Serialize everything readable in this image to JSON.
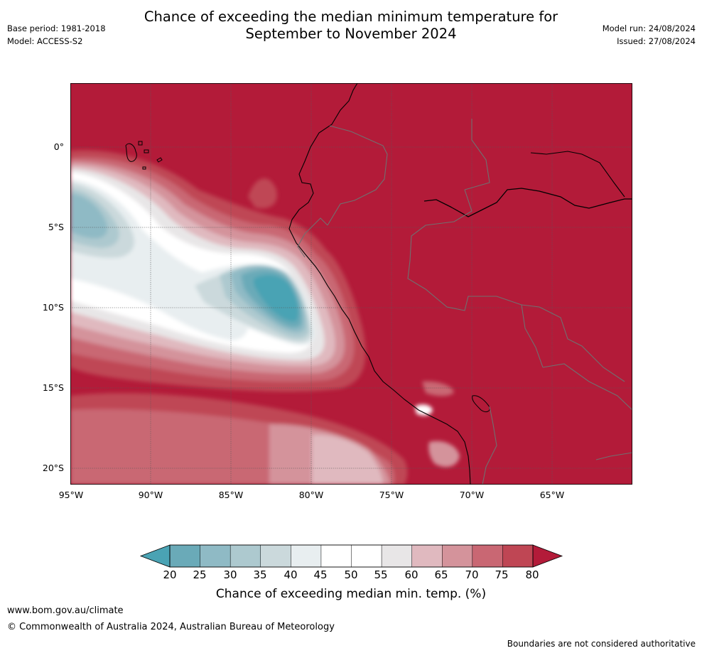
{
  "title_line1": "Chance of exceeding the median minimum temperature for",
  "title_line2": "September to November 2024",
  "base_period": "Base period: 1981-2018",
  "model": "Model: ACCESS-S2",
  "model_run": "Model run: 24/08/2024",
  "issued": "Issued: 27/08/2024",
  "latitude_labels": [
    "0°",
    "5°S",
    "10°S",
    "15°S",
    "20°S"
  ],
  "longitude_labels": [
    "95°W",
    "90°W",
    "85°W",
    "80°W",
    "75°W",
    "70°W",
    "65°W"
  ],
  "colorbar": {
    "ticks": [
      "20",
      "25",
      "30",
      "35",
      "40",
      "45",
      "50",
      "55",
      "60",
      "65",
      "70",
      "75",
      "80"
    ],
    "colors": [
      "#4aa3b4",
      "#6aaab8",
      "#8fbac5",
      "#adc9cf",
      "#cbd9dc",
      "#e8eef0",
      "#ffffff",
      "#ffffff",
      "#e8e6e7",
      "#e0b9bf",
      "#d4939b",
      "#c96773",
      "#bf4654",
      "#b31b39"
    ],
    "label": "Chance of exceeding median min. temp. (%)"
  },
  "footer": {
    "url": "www.bom.gov.au/climate",
    "copyright": "© Commonwealth of Australia 2024, Australian Bureau of Meteorology",
    "disclaimer": "Boundaries are not considered authoritative"
  }
}
